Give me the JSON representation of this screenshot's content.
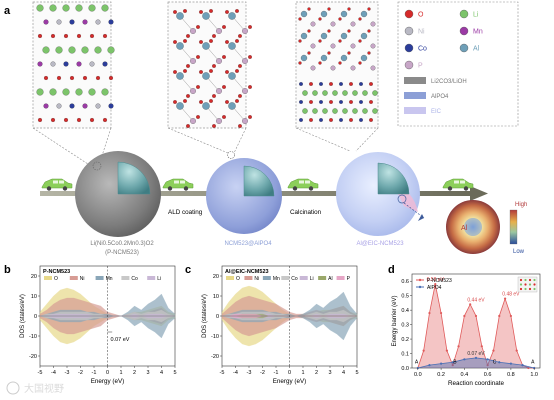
{
  "figure": {
    "panel_a": {
      "label": "a",
      "legend": {
        "atoms": [
          {
            "symbol": "O",
            "color": "#d62a2a"
          },
          {
            "symbol": "Li",
            "color": "#7cc46a"
          },
          {
            "symbol": "Ni",
            "color": "#b9b9c4"
          },
          {
            "symbol": "Mn",
            "color": "#9b3aa5"
          },
          {
            "symbol": "Co",
            "color": "#2b3d9b"
          },
          {
            "symbol": "Al",
            "color": "#6e9fb8"
          },
          {
            "symbol": "P",
            "color": "#c7a6c7"
          }
        ],
        "layers": [
          {
            "label": "Li2CO3/LiOH",
            "color": "#8a8a8a"
          },
          {
            "label": "AlPO4",
            "color": "#8c9fd6"
          },
          {
            "label": "EIC",
            "color": "#c9c6ef"
          }
        ]
      },
      "steps": [
        "ALD coating",
        "Calcination"
      ],
      "particles": {
        "p1_line1": "Li(Ni0.5Co0.2Mn0.3)O2",
        "p1_line2": "(P-NCM523)",
        "p2": "NCM523@AlPO4",
        "p3": "Al@EIC-NCM523"
      },
      "inset": {
        "element": "Al",
        "high": "High",
        "low": "Low"
      }
    },
    "panel_b": {
      "label": "b",
      "title": "P-NCM523",
      "legend": [
        "O",
        "Ni",
        "Mn",
        "Co",
        "Li"
      ],
      "ylabel": "DOS (states/eV)",
      "xlabel": "Energy (eV)",
      "xticks": [
        "-5",
        "-4",
        "-3",
        "-2",
        "-1",
        "0",
        "1",
        "2",
        "3",
        "4",
        "5"
      ],
      "yticks": [
        "20",
        "10",
        "0",
        "-10",
        "-20"
      ],
      "annotation": "0.07 eV"
    },
    "panel_c": {
      "label": "c",
      "title": "Al@EIC-NCM523",
      "legend": [
        "O",
        "Ni",
        "Mn",
        "Co",
        "Li",
        "Al",
        "P"
      ],
      "ylabel": "DOS (states/eV)",
      "xlabel": "Energy (eV)",
      "xticks": [
        "-5",
        "-4",
        "-3",
        "-2",
        "-1",
        "0",
        "1",
        "2",
        "3",
        "4",
        "5"
      ],
      "yticks": [
        "20",
        "10",
        "0",
        "-10",
        "-20"
      ]
    },
    "panel_d": {
      "label": "d",
      "ylabel": "Energy barrier (eV)",
      "xlabel": "Reaction coordinate",
      "legend": [
        "P-NCM523",
        "AlPO4"
      ],
      "xticks": [
        "0.0",
        "0.2",
        "0.4",
        "0.6",
        "0.8",
        "1.0"
      ],
      "yticks": [
        "0.0",
        "0.1",
        "0.2",
        "0.3",
        "0.4",
        "0.5",
        "0.6"
      ],
      "barrier_labels": [
        "0.58 eV",
        "0.44 eV",
        "0.48 eV",
        "0.07 eV"
      ],
      "site_labels": [
        "A",
        "B",
        "C",
        "A"
      ]
    },
    "watermark": "大国视野"
  },
  "chart_data": [
    {
      "type": "area",
      "panel": "b",
      "title": "P-NCM523",
      "xlabel": "Energy (eV)",
      "ylabel": "DOS (states/eV)",
      "xlim": [
        -5,
        5
      ],
      "ylim": [
        -25,
        25
      ],
      "x": [
        -5,
        -4.5,
        -4,
        -3.5,
        -3,
        -2.5,
        -2,
        -1.5,
        -1,
        -0.5,
        0,
        0.5,
        1,
        1.5,
        2,
        2.5,
        3,
        3.5,
        4,
        4.5,
        5
      ],
      "series": [
        {
          "name": "O",
          "color": "#e8d98a",
          "values": [
            2,
            6,
            10,
            13,
            14,
            13,
            11,
            8,
            5,
            3,
            1,
            0,
            0,
            1,
            2,
            2,
            3,
            4,
            5,
            2,
            1
          ]
        },
        {
          "name": "Ni",
          "color": "#d79c94",
          "values": [
            1,
            3,
            6,
            8,
            9,
            9,
            8,
            7,
            6,
            5,
            2,
            1,
            0,
            1,
            2,
            1,
            2,
            3,
            4,
            1,
            0
          ]
        },
        {
          "name": "Mn",
          "color": "#8aa6b8",
          "values": [
            0,
            1,
            2,
            3,
            3,
            3,
            3,
            2,
            2,
            1,
            1,
            0,
            0,
            2,
            5,
            3,
            6,
            8,
            11,
            4,
            1
          ]
        },
        {
          "name": "Co",
          "color": "#c8c8c8",
          "values": [
            0,
            1,
            1,
            2,
            2,
            2,
            2,
            2,
            1,
            1,
            0,
            0,
            0,
            1,
            2,
            1,
            2,
            2,
            3,
            1,
            0
          ]
        },
        {
          "name": "Li",
          "color": "#c9b8d6",
          "values": [
            0,
            0,
            1,
            1,
            1,
            1,
            1,
            1,
            0,
            0,
            0,
            0,
            0,
            0,
            1,
            0,
            1,
            1,
            1,
            0,
            0
          ]
        }
      ],
      "mirror_spin_down": true,
      "annotation": {
        "text": "0.07 eV",
        "x": 0.2
      }
    },
    {
      "type": "area",
      "panel": "c",
      "title": "Al@EIC-NCM523",
      "xlabel": "Energy (eV)",
      "ylabel": "DOS (states/eV)",
      "xlim": [
        -5,
        5
      ],
      "ylim": [
        -25,
        25
      ],
      "x": [
        -5,
        -4.5,
        -4,
        -3.5,
        -3,
        -2.5,
        -2,
        -1.5,
        -1,
        -0.5,
        0,
        0.5,
        1,
        1.5,
        2,
        2.5,
        3,
        3.5,
        4,
        4.5,
        5
      ],
      "series": [
        {
          "name": "O",
          "color": "#e8d98a",
          "values": [
            2,
            7,
            11,
            14,
            15,
            14,
            12,
            9,
            6,
            3,
            1,
            0,
            1,
            1,
            2,
            3,
            3,
            4,
            5,
            2,
            1
          ]
        },
        {
          "name": "Ni",
          "color": "#d79c94",
          "values": [
            1,
            4,
            7,
            9,
            10,
            9,
            8,
            7,
            6,
            4,
            2,
            1,
            1,
            2,
            3,
            2,
            3,
            4,
            5,
            2,
            0
          ]
        },
        {
          "name": "Mn",
          "color": "#8aa6b8",
          "values": [
            0,
            1,
            2,
            3,
            3,
            3,
            3,
            2,
            2,
            1,
            1,
            0,
            1,
            3,
            6,
            4,
            7,
            9,
            12,
            5,
            1
          ]
        },
        {
          "name": "Co",
          "color": "#c8c8c8",
          "values": [
            0,
            1,
            1,
            2,
            2,
            2,
            2,
            2,
            1,
            1,
            0,
            0,
            0,
            1,
            2,
            1,
            2,
            2,
            3,
            1,
            0
          ]
        },
        {
          "name": "Li",
          "color": "#c9b8d6",
          "values": [
            0,
            0,
            1,
            1,
            1,
            1,
            1,
            1,
            0,
            0,
            0,
            0,
            0,
            0,
            1,
            0,
            1,
            1,
            1,
            0,
            0
          ]
        },
        {
          "name": "Al",
          "color": "#9aa86a",
          "values": [
            0,
            0,
            0,
            1,
            1,
            1,
            1,
            0,
            0,
            0,
            0,
            0,
            0,
            0,
            0,
            0,
            0,
            0,
            0,
            0,
            0
          ]
        },
        {
          "name": "P",
          "color": "#e6a6c6",
          "values": [
            0,
            0,
            1,
            1,
            1,
            1,
            0,
            0,
            0,
            0,
            0,
            0,
            0,
            0,
            0,
            0,
            0,
            0,
            0,
            0,
            0
          ]
        }
      ],
      "mirror_spin_down": true
    },
    {
      "type": "line",
      "panel": "d",
      "xlabel": "Reaction coordinate",
      "ylabel": "Energy barrier (eV)",
      "xlim": [
        -0.05,
        1.05
      ],
      "ylim": [
        0,
        0.65
      ],
      "series": [
        {
          "name": "P-NCM523",
          "color": "#e05a5a",
          "x": [
            0.0,
            0.05,
            0.1,
            0.15,
            0.2,
            0.25,
            0.3,
            0.35,
            0.4,
            0.45,
            0.5,
            0.55,
            0.6,
            0.65,
            0.7,
            0.75,
            0.8,
            0.85,
            0.9,
            0.95,
            1.0
          ],
          "values": [
            0.0,
            0.12,
            0.38,
            0.58,
            0.38,
            0.12,
            0.02,
            0.15,
            0.36,
            0.44,
            0.36,
            0.15,
            0.02,
            0.12,
            0.36,
            0.48,
            0.36,
            0.12,
            0.02,
            0.0,
            0.0
          ]
        },
        {
          "name": "AlPO4",
          "color": "#4a6fb5",
          "x": [
            0.0,
            0.1,
            0.2,
            0.3,
            0.4,
            0.5,
            0.6,
            0.7,
            0.8,
            0.9,
            1.0
          ],
          "values": [
            0.0,
            0.02,
            0.03,
            0.04,
            0.06,
            0.07,
            0.06,
            0.04,
            0.03,
            0.02,
            0.0
          ]
        }
      ]
    }
  ]
}
